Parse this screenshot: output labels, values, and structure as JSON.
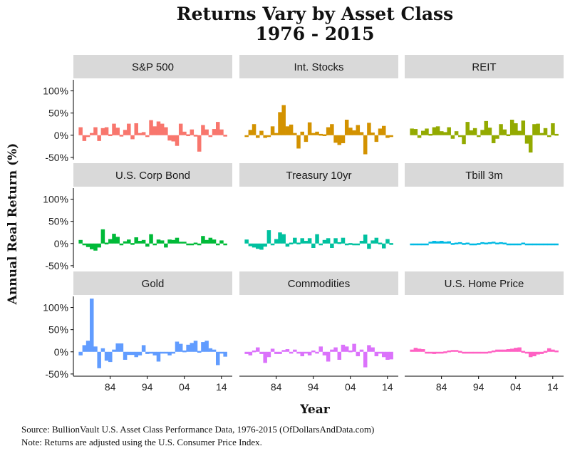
{
  "title_line1": "Returns Vary by Asset Class",
  "title_line2": "1976 - 2015",
  "chart_data": {
    "type": "bar",
    "x_label": "Year",
    "y_label": "Annual Real Return (%)",
    "x_ticks": [
      1984,
      1994,
      2004,
      2014
    ],
    "x_tick_labels": [
      "84",
      "94",
      "04",
      "14"
    ],
    "x_range": [
      1976,
      2015
    ],
    "y_ticks": [
      -50,
      0,
      50,
      100
    ],
    "y_tick_labels": [
      "-50%",
      "0%",
      "50%",
      "100%"
    ],
    "y_range": [
      -55,
      125
    ],
    "panels": [
      {
        "name": "S&P 500",
        "color": "#F8766D",
        "years": [
          1976,
          1977,
          1978,
          1979,
          1980,
          1981,
          1982,
          1983,
          1984,
          1985,
          1986,
          1987,
          1988,
          1989,
          1990,
          1991,
          1992,
          1993,
          1994,
          1995,
          1996,
          1997,
          1998,
          1999,
          2000,
          2001,
          2002,
          2003,
          2004,
          2005,
          2006,
          2007,
          2008,
          2009,
          2010,
          2011,
          2012,
          2013,
          2014,
          2015
        ],
        "values": [
          18,
          -13,
          -2,
          5,
          18,
          -13,
          16,
          18,
          2,
          26,
          17,
          1,
          12,
          26,
          -9,
          27,
          5,
          7,
          -1,
          34,
          20,
          31,
          26,
          18,
          -12,
          -14,
          -24,
          26,
          8,
          2,
          13,
          1,
          -37,
          23,
          13,
          -1,
          14,
          30,
          13,
          1
        ]
      },
      {
        "name": "Int. Stocks",
        "color": "#D39200",
        "years": [
          1976,
          1977,
          1978,
          1979,
          1980,
          1981,
          1982,
          1983,
          1984,
          1985,
          1986,
          1987,
          1988,
          1989,
          1990,
          1991,
          1992,
          1993,
          1994,
          1995,
          1996,
          1997,
          1998,
          1999,
          2000,
          2001,
          2002,
          2003,
          2004,
          2005,
          2006,
          2007,
          2008,
          2009,
          2010,
          2011,
          2012,
          2013,
          2014,
          2015
        ],
        "values": [
          -4,
          12,
          25,
          -6,
          10,
          -6,
          -4,
          20,
          5,
          52,
          68,
          20,
          24,
          5,
          -30,
          8,
          -15,
          29,
          5,
          8,
          3,
          2,
          18,
          25,
          -17,
          -22,
          -18,
          35,
          17,
          11,
          23,
          7,
          -43,
          28,
          6,
          -15,
          15,
          21,
          -6,
          -2
        ]
      },
      {
        "name": "REIT",
        "color": "#93AA00",
        "years": [
          1976,
          1977,
          1978,
          1979,
          1980,
          1981,
          1982,
          1983,
          1984,
          1985,
          1986,
          1987,
          1988,
          1989,
          1990,
          1991,
          1992,
          1993,
          1994,
          1995,
          1996,
          1997,
          1998,
          1999,
          2000,
          2001,
          2002,
          2003,
          2004,
          2005,
          2006,
          2007,
          2008,
          2009,
          2010,
          2011,
          2012,
          2013,
          2014,
          2015
        ],
        "values": [
          15,
          14,
          -6,
          10,
          15,
          3,
          18,
          20,
          9,
          7,
          18,
          -8,
          9,
          -2,
          -20,
          30,
          11,
          16,
          -1,
          12,
          32,
          17,
          -18,
          -8,
          25,
          13,
          2,
          35,
          27,
          10,
          33,
          -19,
          -39,
          25,
          26,
          5,
          16,
          -1,
          27,
          3
        ]
      },
      {
        "name": "U.S. Corp Bond",
        "color": "#00BA38",
        "years": [
          1976,
          1977,
          1978,
          1979,
          1980,
          1981,
          1982,
          1983,
          1984,
          1985,
          1986,
          1987,
          1988,
          1989,
          1990,
          1991,
          1992,
          1993,
          1994,
          1995,
          1996,
          1997,
          1998,
          1999,
          2000,
          2001,
          2002,
          2003,
          2004,
          2005,
          2006,
          2007,
          2008,
          2009,
          2010,
          2011,
          2012,
          2013,
          2014,
          2015
        ],
        "values": [
          8,
          -4,
          -8,
          -13,
          -16,
          -9,
          32,
          2,
          10,
          22,
          15,
          -4,
          5,
          9,
          1,
          14,
          6,
          8,
          -7,
          21,
          -1,
          9,
          7,
          -9,
          9,
          8,
          13,
          4,
          4,
          -1,
          0,
          2,
          -3,
          17,
          8,
          13,
          9,
          -3,
          7,
          -1
        ]
      },
      {
        "name": "Treasury 10yr",
        "color": "#00C19F",
        "years": [
          1976,
          1977,
          1978,
          1979,
          1980,
          1981,
          1982,
          1983,
          1984,
          1985,
          1986,
          1987,
          1988,
          1989,
          1990,
          1991,
          1992,
          1993,
          1994,
          1995,
          1996,
          1997,
          1998,
          1999,
          2000,
          2001,
          2002,
          2003,
          2004,
          2005,
          2006,
          2007,
          2008,
          2009,
          2010,
          2011,
          2012,
          2013,
          2014,
          2015
        ],
        "values": [
          9,
          -6,
          -9,
          -12,
          -14,
          -7,
          30,
          -1,
          10,
          25,
          21,
          -7,
          2,
          13,
          2,
          12,
          6,
          12,
          -10,
          21,
          -2,
          8,
          12,
          -10,
          12,
          3,
          13,
          0,
          1,
          -1,
          0,
          6,
          20,
          -12,
          7,
          13,
          2,
          -11,
          10,
          1
        ]
      },
      {
        "name": "Tbill 3m",
        "color": "#00B9E3",
        "years": [
          1976,
          1977,
          1978,
          1979,
          1980,
          1981,
          1982,
          1983,
          1984,
          1985,
          1986,
          1987,
          1988,
          1989,
          1990,
          1991,
          1992,
          1993,
          1994,
          1995,
          1996,
          1997,
          1998,
          1999,
          2000,
          2001,
          2002,
          2003,
          2004,
          2005,
          2006,
          2007,
          2008,
          2009,
          2010,
          2011,
          2012,
          2013,
          2014,
          2015
        ],
        "values": [
          0,
          -2,
          -2,
          -3,
          -1,
          4,
          6,
          5,
          6,
          4,
          5,
          1,
          2,
          3,
          1,
          2,
          0,
          0,
          1,
          3,
          2,
          3,
          4,
          2,
          3,
          2,
          -1,
          -1,
          -2,
          0,
          2,
          0,
          -1,
          -2,
          -1,
          -3,
          -2,
          -1,
          -1,
          0
        ]
      },
      {
        "name": "Gold",
        "color": "#619CFF",
        "years": [
          1976,
          1977,
          1978,
          1979,
          1980,
          1981,
          1982,
          1983,
          1984,
          1985,
          1986,
          1987,
          1988,
          1989,
          1990,
          1991,
          1992,
          1993,
          1994,
          1995,
          1996,
          1997,
          1998,
          1999,
          2000,
          2001,
          2002,
          2003,
          2004,
          2005,
          2006,
          2007,
          2008,
          2009,
          2010,
          2011,
          2012,
          2013,
          2014,
          2015
        ],
        "values": [
          -8,
          15,
          25,
          120,
          12,
          -37,
          8,
          -20,
          -23,
          5,
          19,
          19,
          -18,
          -7,
          -7,
          -12,
          -8,
          15,
          -5,
          -1,
          -8,
          -22,
          -3,
          -1,
          -8,
          0,
          23,
          18,
          3,
          16,
          20,
          25,
          2,
          22,
          25,
          8,
          5,
          -30,
          -2,
          -11
        ]
      },
      {
        "name": "Commodities",
        "color": "#DB72FB",
        "years": [
          1976,
          1977,
          1978,
          1979,
          1980,
          1981,
          1982,
          1983,
          1984,
          1985,
          1986,
          1987,
          1988,
          1989,
          1990,
          1991,
          1992,
          1993,
          1994,
          1995,
          1996,
          1997,
          1998,
          1999,
          2000,
          2001,
          2002,
          2003,
          2004,
          2005,
          2006,
          2007,
          2008,
          2009,
          2010,
          2011,
          2012,
          2013,
          2014,
          2015
        ],
        "values": [
          -5,
          -8,
          3,
          10,
          -5,
          -25,
          -12,
          7,
          -5,
          -5,
          4,
          6,
          0,
          5,
          -4,
          -10,
          -3,
          -8,
          3,
          -2,
          12,
          -8,
          -22,
          5,
          10,
          -18,
          16,
          12,
          3,
          18,
          -10,
          5,
          -35,
          15,
          10,
          -10,
          0,
          -12,
          -18,
          -17
        ]
      },
      {
        "name": "U.S. Home Price",
        "color": "#FF61C3",
        "years": [
          1976,
          1977,
          1978,
          1979,
          1980,
          1981,
          1982,
          1983,
          1984,
          1985,
          1986,
          1987,
          1988,
          1989,
          1990,
          1991,
          1992,
          1993,
          1994,
          1995,
          1996,
          1997,
          1998,
          1999,
          2000,
          2001,
          2002,
          2003,
          2004,
          2005,
          2006,
          2007,
          2008,
          2009,
          2010,
          2011,
          2012,
          2013,
          2014,
          2015
        ],
        "values": [
          5,
          9,
          7,
          6,
          -3,
          -4,
          -5,
          -4,
          -2,
          1,
          3,
          4,
          4,
          2,
          -3,
          -4,
          -3,
          -2,
          -1,
          -1,
          0,
          1,
          3,
          5,
          5,
          5,
          6,
          7,
          9,
          10,
          2,
          -4,
          -12,
          -10,
          -6,
          -5,
          2,
          8,
          5,
          3
        ]
      }
    ]
  },
  "source_line": "Source:  BullionVault U.S. Asset Class Performance Data, 1976-2015 (OfDollarsAndData.com)",
  "note_line": "Note:  Returns are adjusted using the U.S. Consumer Price Index."
}
